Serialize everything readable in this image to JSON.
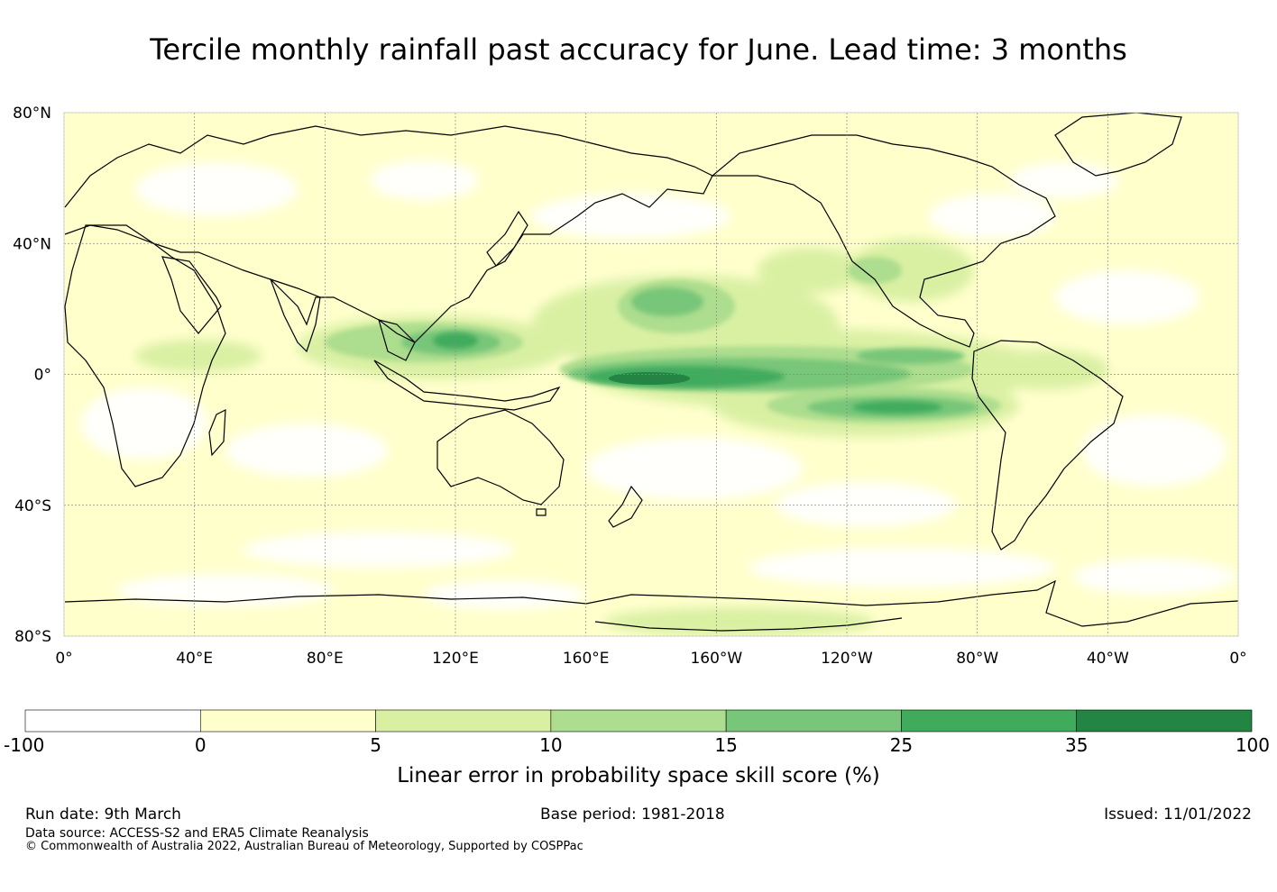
{
  "title": "Tercile monthly rainfall past accuracy for June. Lead time: 3 months",
  "map": {
    "lat_labels": [
      "80°N",
      "40°N",
      "0°",
      "40°S",
      "80°S"
    ],
    "lon_labels": [
      "0°",
      "40°E",
      "80°E",
      "120°E",
      "160°E",
      "160°W",
      "120°W",
      "80°W",
      "40°W",
      "0°"
    ],
    "lat_values": [
      80,
      40,
      0,
      -40,
      -80
    ],
    "lon_values": [
      0,
      40,
      80,
      120,
      160,
      200,
      240,
      280,
      320,
      360
    ]
  },
  "legend": {
    "title": "Linear error in probability space skill score (%)",
    "ticks": [
      "-100",
      "0",
      "5",
      "10",
      "15",
      "25",
      "35",
      "100"
    ],
    "colors": [
      "#ffffff",
      "#ffffcc",
      "#d9f0a3",
      "#addd8e",
      "#78c679",
      "#41ab5d",
      "#238443"
    ]
  },
  "footer": {
    "run_date": "Run date: 9th March",
    "base_period": "Base period: 1981-2018",
    "issued": "Issued: 11/01/2022",
    "data_source": "Data source: ACCESS-S2 and ERA5 Climate Reanalysis",
    "copyright": "© Commonwealth of Australia 2022, Australian Bureau of Meteorology, Supported by COSPPac"
  }
}
